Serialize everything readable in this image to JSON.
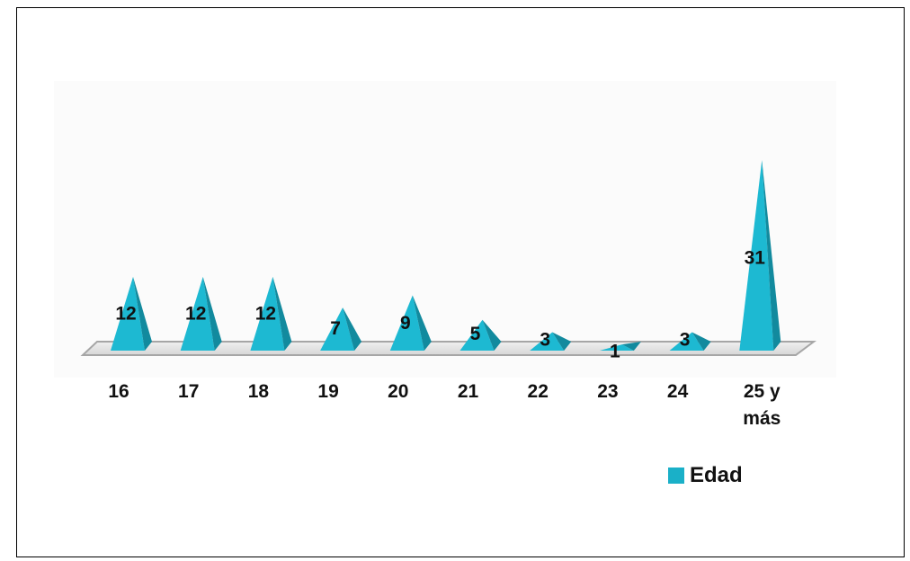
{
  "chart_data": {
    "type": "bar",
    "style": "3d-pyramid",
    "categories": [
      "16",
      "17",
      "18",
      "19",
      "20",
      "21",
      "22",
      "23",
      "24",
      "25 y más"
    ],
    "series": [
      {
        "name": "Edad",
        "values": [
          12,
          12,
          12,
          7,
          9,
          5,
          3,
          1,
          3,
          31
        ],
        "color": "#1ab0c8"
      }
    ],
    "data_labels": true,
    "grid": false,
    "legend": "bottom-right",
    "ylim": [
      0,
      31
    ]
  }
}
